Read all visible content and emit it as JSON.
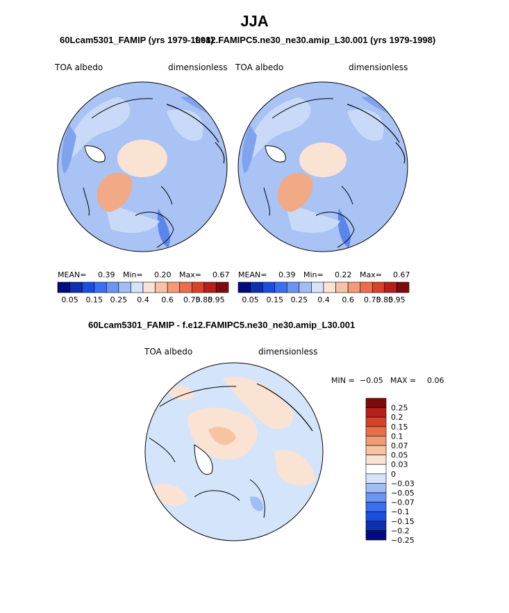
{
  "page": {
    "title": "JJA"
  },
  "chart_data": [
    {
      "type": "heatmap",
      "subtitle": "60Lcam5301_FAMIP (yrs 1979-1998)",
      "left_label": "TOA albedo",
      "right_label": "dimensionless",
      "stats": {
        "mean_label": "MEAN=",
        "mean": "0.39",
        "min_label": "Min=",
        "min": "0.20",
        "max_label": "Max=",
        "max": "0.67"
      },
      "colorbar_ticks": [
        "0.05",
        "0.15",
        "0.25",
        "0.4",
        "0.6",
        "0.75",
        "0.85",
        "0.95"
      ],
      "colorbar_colors": [
        "#000c7d",
        "#0d2fb0",
        "#1a4ee0",
        "#3a6ff2",
        "#6b95f0",
        "#a0bdf5",
        "#d4e4fb",
        "#fbe3d4",
        "#f7c3a3",
        "#f29b75",
        "#ea6d4c",
        "#d9412b",
        "#b4201a",
        "#7e0b0b"
      ]
    },
    {
      "type": "heatmap",
      "subtitle": "f.e12.FAMIPC5.ne30_ne30.amip_L30.001 (yrs 1979-1998)",
      "left_label": "TOA albedo",
      "right_label": "dimensionless",
      "stats": {
        "mean_label": "MEAN=",
        "mean": "0.39",
        "min_label": "Min=",
        "min": "0.22",
        "max_label": "Max=",
        "max": "0.67"
      },
      "colorbar_ticks": [
        "0.05",
        "0.15",
        "0.25",
        "0.4",
        "0.6",
        "0.75",
        "0.85",
        "0.95"
      ],
      "colorbar_colors": [
        "#000c7d",
        "#0d2fb0",
        "#1a4ee0",
        "#3a6ff2",
        "#6b95f0",
        "#a0bdf5",
        "#d4e4fb",
        "#fbe3d4",
        "#f7c3a3",
        "#f29b75",
        "#ea6d4c",
        "#d9412b",
        "#b4201a",
        "#7e0b0b"
      ]
    },
    {
      "type": "heatmap",
      "subtitle": "60Lcam5301_FAMIP - f.e12.FAMIPC5.ne30_ne30.amip_L30.001",
      "left_label": "TOA albedo",
      "right_label": "dimensionless",
      "stats": {
        "min_label": "MIN =",
        "min": "−0.05",
        "max_label": "MAX =",
        "max": "0.06"
      },
      "colorbar_ticks": [
        "0.25",
        "0.2",
        "0.15",
        "0.1",
        "0.07",
        "0.05",
        "0.03",
        "0",
        "−0.03",
        "−0.05",
        "−0.07",
        "−0.1",
        "−0.15",
        "−0.2",
        "−0.25"
      ],
      "colorbar_colors": [
        "#7e0b0b",
        "#b4201a",
        "#d9412b",
        "#ea6d4c",
        "#f29b75",
        "#f7c3a3",
        "#fbe3d4",
        "#ffffff",
        "#d4e4fb",
        "#a0bdf5",
        "#6b95f0",
        "#3a6ff2",
        "#1a4ee0",
        "#0d2fb0",
        "#000c7d"
      ]
    }
  ]
}
